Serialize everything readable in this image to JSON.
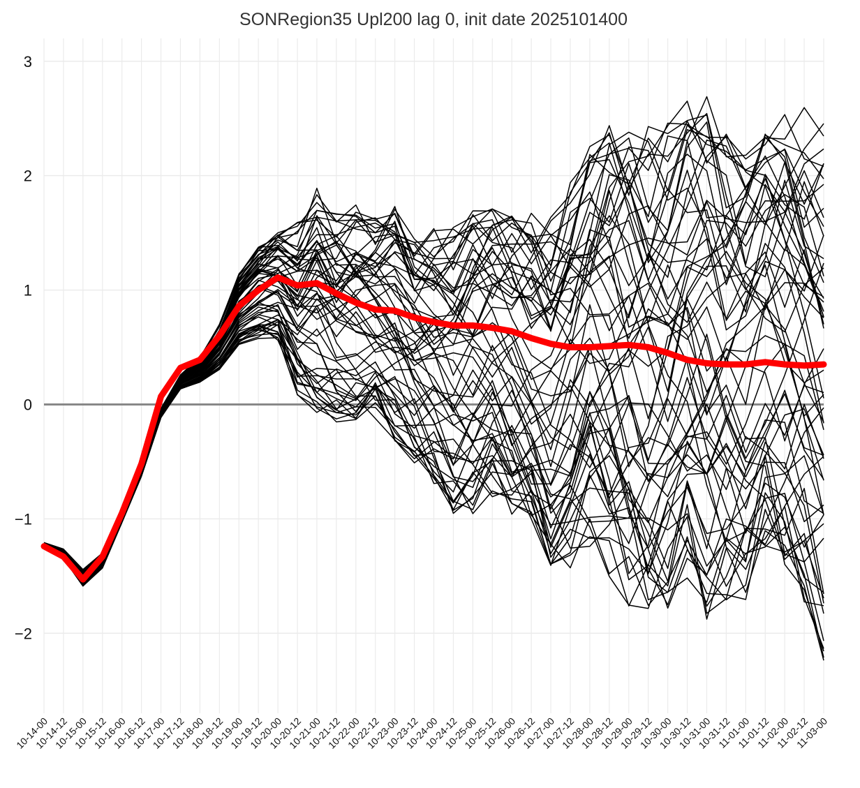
{
  "chart_data": {
    "type": "line",
    "title": "SONRegion35 Upl200 lag 0, init date 2025101400",
    "xlabel": "",
    "ylabel": "",
    "x_ticks": [
      "10-14-00",
      "10-14-12",
      "10-15-00",
      "10-15-12",
      "10-16-00",
      "10-16-12",
      "10-17-00",
      "10-17-12",
      "10-18-00",
      "10-18-12",
      "10-19-00",
      "10-19-12",
      "10-20-00",
      "10-20-12",
      "10-21-00",
      "10-21-12",
      "10-22-00",
      "10-22-12",
      "10-23-00",
      "10-23-12",
      "10-24-00",
      "10-24-12",
      "10-25-00",
      "10-25-12",
      "10-26-00",
      "10-26-12",
      "10-27-00",
      "10-27-12",
      "10-28-00",
      "10-28-12",
      "10-29-00",
      "10-29-12",
      "10-30-00",
      "10-30-12",
      "10-31-00",
      "10-31-12",
      "11-01-00",
      "11-01-12",
      "11-02-00",
      "11-02-12",
      "11-03-00"
    ],
    "y_ticks": [
      "3",
      "2",
      "1",
      "0",
      "-1",
      "-2"
    ],
    "ylim": [
      -2.7,
      3.2
    ],
    "grid": true,
    "zero_line": {
      "value": 0,
      "color": "#888888"
    },
    "ensemble": {
      "color": "#000000",
      "members": 60,
      "envelope_max": [
        -1.2,
        -1.25,
        -1.42,
        -1.28,
        -0.9,
        -0.5,
        -0.05,
        0.25,
        0.42,
        0.72,
        1.2,
        1.45,
        1.6,
        1.7,
        2.1,
        1.85,
        1.9,
        1.78,
        1.9,
        1.6,
        1.7,
        1.7,
        1.9,
        1.9,
        1.9,
        1.9,
        1.9,
        2.2,
        2.6,
        2.9,
        2.8,
        2.8,
        2.9,
        3.1,
        3.2,
        2.8,
        2.6,
        2.8,
        3.0,
        3.0,
        3.0
      ],
      "envelope_min": [
        -1.25,
        -1.35,
        -1.6,
        -1.45,
        -1.05,
        -0.65,
        -0.15,
        0.1,
        0.15,
        0.25,
        0.45,
        0.5,
        0.45,
        -0.1,
        -0.3,
        -0.4,
        -0.35,
        -0.3,
        -0.55,
        -0.75,
        -0.95,
        -1.25,
        -1.25,
        -1.1,
        -1.25,
        -1.45,
        -1.85,
        -1.8,
        -1.6,
        -1.95,
        -2.2,
        -2.35,
        -2.2,
        -1.9,
        -2.4,
        -2.2,
        -2.1,
        -1.6,
        -2.0,
        -2.2,
        -2.7
      ]
    },
    "series": [
      {
        "name": "",
        "color": "#ff0000",
        "values": [
          -1.24,
          -1.33,
          -1.53,
          -1.33,
          -0.95,
          -0.52,
          0.07,
          0.32,
          0.39,
          0.6,
          0.86,
          1.0,
          1.11,
          1.04,
          1.06,
          0.97,
          0.89,
          0.83,
          0.82,
          0.76,
          0.72,
          0.69,
          0.69,
          0.67,
          0.64,
          0.58,
          0.53,
          0.5,
          0.5,
          0.51,
          0.52,
          0.5,
          0.45,
          0.39,
          0.36,
          0.35,
          0.35,
          0.37,
          0.35,
          0.34,
          0.35
        ]
      }
    ]
  }
}
